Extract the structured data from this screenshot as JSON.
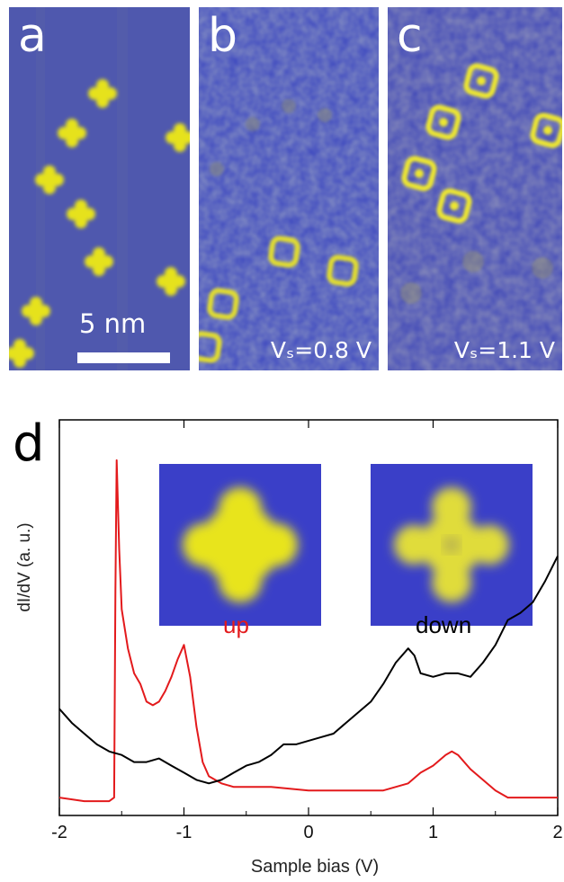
{
  "panels": {
    "a": {
      "letter": "a",
      "scale_label": "5 nm"
    },
    "b": {
      "letter": "b",
      "bias_label": "Vₛ=0.8 V"
    },
    "c": {
      "letter": "c",
      "bias_label": "Vₛ=1.1 V"
    }
  },
  "panel_d": {
    "letter": "d"
  },
  "insets": {
    "up": {
      "label": "up",
      "color": "#e31a1c"
    },
    "down": {
      "label": "down",
      "color": "#000000"
    }
  },
  "colors": {
    "stm_background": "#4a53b3",
    "stm_feature": "#e8e020",
    "inset_background": "#3a3fc8",
    "series_up": "#e31a1c",
    "series_down": "#000000"
  },
  "chart_data": {
    "type": "line",
    "xlabel": "Sample bias (V)",
    "ylabel": "dI/dV (a. u.)",
    "xlim": [
      -2,
      2
    ],
    "xticks": [
      "-2",
      "-1",
      "0",
      "1",
      "2"
    ],
    "series": [
      {
        "name": "up",
        "color": "#e31a1c",
        "x": [
          -2.0,
          -1.8,
          -1.6,
          -1.56,
          -1.55,
          -1.54,
          -1.52,
          -1.5,
          -1.45,
          -1.4,
          -1.35,
          -1.3,
          -1.25,
          -1.2,
          -1.15,
          -1.1,
          -1.05,
          -1.0,
          -0.95,
          -0.9,
          -0.85,
          -0.8,
          -0.7,
          -0.6,
          -0.5,
          -0.3,
          0.0,
          0.3,
          0.6,
          0.8,
          0.9,
          1.0,
          1.1,
          1.15,
          1.2,
          1.3,
          1.4,
          1.5,
          1.6,
          1.8,
          2.0
        ],
        "y": [
          0.02,
          0.01,
          0.01,
          0.02,
          0.6,
          0.97,
          0.72,
          0.55,
          0.44,
          0.37,
          0.34,
          0.29,
          0.28,
          0.29,
          0.32,
          0.36,
          0.41,
          0.45,
          0.36,
          0.22,
          0.12,
          0.08,
          0.06,
          0.05,
          0.05,
          0.05,
          0.04,
          0.04,
          0.04,
          0.06,
          0.09,
          0.11,
          0.14,
          0.15,
          0.14,
          0.1,
          0.07,
          0.04,
          0.02,
          0.02,
          0.02
        ]
      },
      {
        "name": "down",
        "color": "#000000",
        "x": [
          -2.0,
          -1.9,
          -1.8,
          -1.7,
          -1.6,
          -1.5,
          -1.4,
          -1.3,
          -1.2,
          -1.1,
          -1.0,
          -0.9,
          -0.8,
          -0.7,
          -0.6,
          -0.5,
          -0.4,
          -0.3,
          -0.2,
          -0.1,
          0.0,
          0.1,
          0.2,
          0.3,
          0.4,
          0.5,
          0.6,
          0.7,
          0.8,
          0.85,
          0.9,
          1.0,
          1.1,
          1.2,
          1.3,
          1.4,
          1.5,
          1.6,
          1.7,
          1.8,
          1.9,
          2.0
        ],
        "y": [
          0.27,
          0.23,
          0.2,
          0.17,
          0.15,
          0.14,
          0.12,
          0.12,
          0.13,
          0.11,
          0.09,
          0.07,
          0.06,
          0.07,
          0.09,
          0.11,
          0.12,
          0.14,
          0.17,
          0.17,
          0.18,
          0.19,
          0.2,
          0.23,
          0.26,
          0.29,
          0.34,
          0.4,
          0.44,
          0.42,
          0.37,
          0.36,
          0.37,
          0.37,
          0.36,
          0.4,
          0.45,
          0.52,
          0.54,
          0.57,
          0.63,
          0.7
        ]
      }
    ]
  }
}
